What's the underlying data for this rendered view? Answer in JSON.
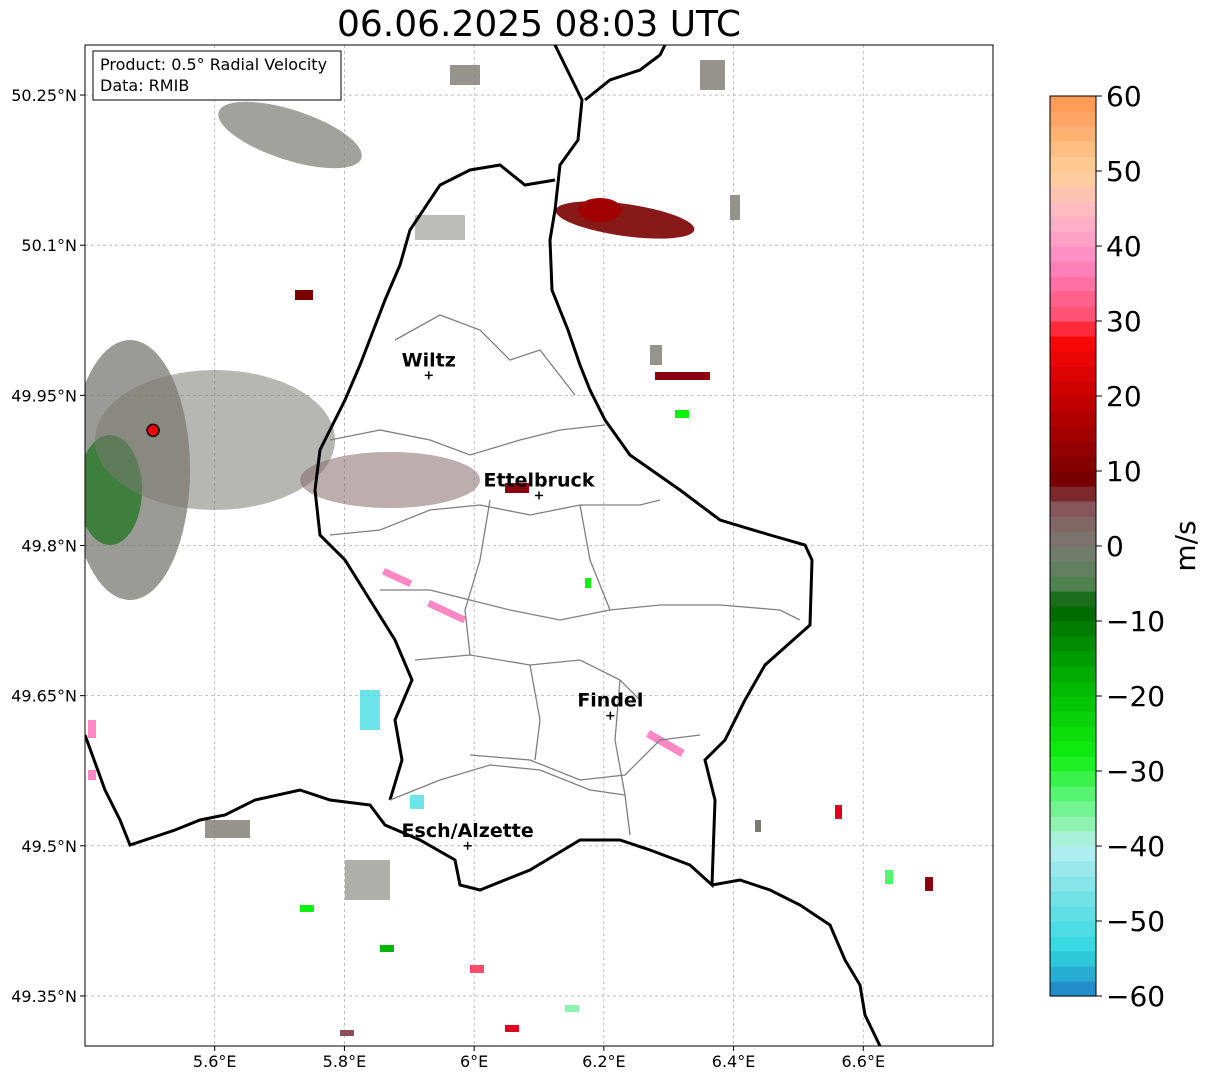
{
  "title": "06.06.2025 08:03 UTC",
  "info_box": {
    "line1": "Product: 0.5° Radial Velocity",
    "line2": "Data: RMIB"
  },
  "axes": {
    "x_ticks": [
      {
        "value": 5.6,
        "label": "5.6°E"
      },
      {
        "value": 5.8,
        "label": "5.8°E"
      },
      {
        "value": 6.0,
        "label": "6°E"
      },
      {
        "value": 6.2,
        "label": "6.2°E"
      },
      {
        "value": 6.4,
        "label": "6.4°E"
      },
      {
        "value": 6.6,
        "label": "6.6°E"
      }
    ],
    "y_ticks": [
      {
        "value": 50.25,
        "label": "50.25°N"
      },
      {
        "value": 50.1,
        "label": "50.1°N"
      },
      {
        "value": 49.95,
        "label": "49.95°N"
      },
      {
        "value": 49.8,
        "label": "49.8°N"
      },
      {
        "value": 49.65,
        "label": "49.65°N"
      },
      {
        "value": 49.5,
        "label": "49.5°N"
      },
      {
        "value": 49.35,
        "label": "49.35°N"
      }
    ],
    "lon_range": [
      5.4,
      6.8
    ],
    "lat_range": [
      49.3,
      50.3
    ],
    "grid": true
  },
  "cities": [
    {
      "name": "Wiltz",
      "lon": 5.93,
      "lat": 49.97
    },
    {
      "name": "Ettelbruck",
      "lon": 6.1,
      "lat": 49.85
    },
    {
      "name": "Findel",
      "lon": 6.21,
      "lat": 49.63
    },
    {
      "name": "Esch/Alzette",
      "lon": 5.99,
      "lat": 49.5
    }
  ],
  "radar_site": {
    "lon": 5.505,
    "lat": 49.915,
    "color": "#e60000"
  },
  "colorbar": {
    "label": "m/s",
    "min": -60,
    "max": 60,
    "ticks": [
      {
        "value": 60,
        "label": "60"
      },
      {
        "value": 50,
        "label": "50"
      },
      {
        "value": 40,
        "label": "40"
      },
      {
        "value": 30,
        "label": "30"
      },
      {
        "value": 20,
        "label": "20"
      },
      {
        "value": 10,
        "label": "10"
      },
      {
        "value": 0,
        "label": "0"
      },
      {
        "value": -10,
        "label": "−10"
      },
      {
        "value": -20,
        "label": "−20"
      },
      {
        "value": -30,
        "label": "−30"
      },
      {
        "value": -40,
        "label": "−40"
      },
      {
        "value": -50,
        "label": "−50"
      },
      {
        "value": -60,
        "label": "−60"
      }
    ],
    "color_stops": [
      {
        "value": -60,
        "color": "#1f7fc4"
      },
      {
        "value": -54,
        "color": "#2fd8e0"
      },
      {
        "value": -44,
        "color": "#8ee6ea"
      },
      {
        "value": -40,
        "color": "#b8f0f2"
      },
      {
        "value": -37,
        "color": "#8ef2b0"
      },
      {
        "value": -33,
        "color": "#55f570"
      },
      {
        "value": -28,
        "color": "#10f010"
      },
      {
        "value": -18,
        "color": "#00b400"
      },
      {
        "value": -8,
        "color": "#006400"
      },
      {
        "value": -5,
        "color": "#4f8250"
      },
      {
        "value": 0,
        "color": "#7a7a72"
      },
      {
        "value": 6,
        "color": "#8a4f58"
      },
      {
        "value": 8,
        "color": "#700000"
      },
      {
        "value": 20,
        "color": "#c80000"
      },
      {
        "value": 28,
        "color": "#ff0808"
      },
      {
        "value": 30,
        "color": "#ff4a6a"
      },
      {
        "value": 38,
        "color": "#ff88c4"
      },
      {
        "value": 44,
        "color": "#ffb8c8"
      },
      {
        "value": 50,
        "color": "#ffd098"
      },
      {
        "value": 60,
        "color": "#ff9450"
      }
    ]
  }
}
